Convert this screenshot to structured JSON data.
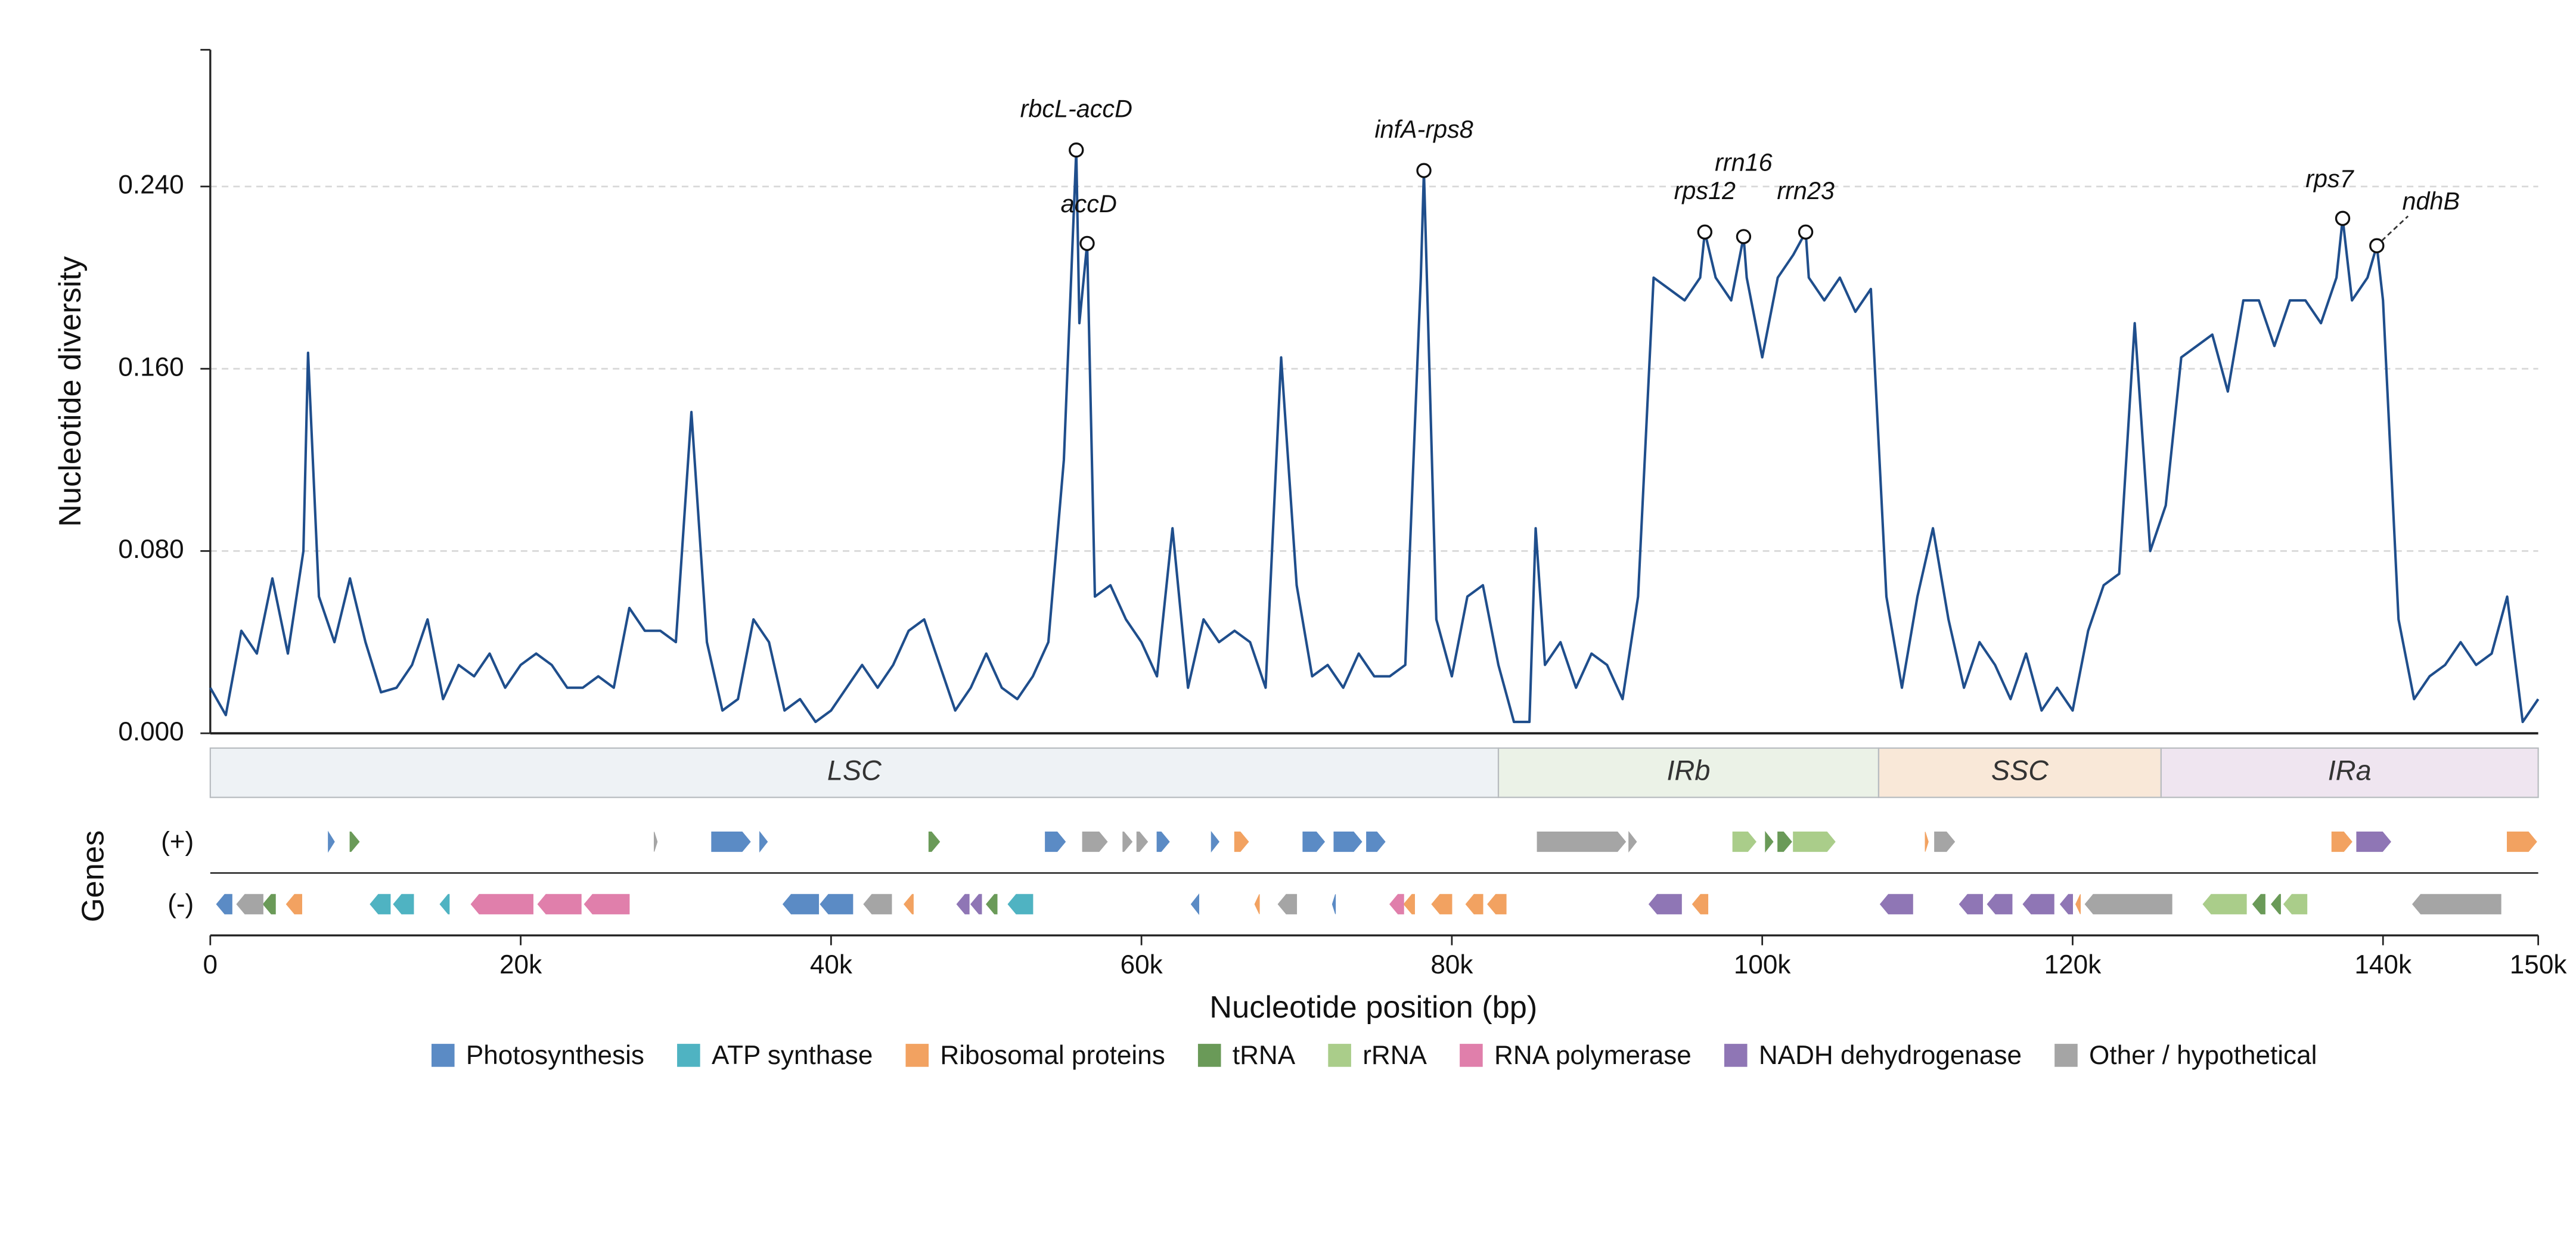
{
  "chart_data": {
    "type": "line",
    "ylabel": "Nucleotide diversity",
    "xlabel": "Nucleotide position (bp)",
    "genes_label": "Genes",
    "plus_label": "(+)",
    "minus_label": "(-)",
    "color": "#1f4e8c",
    "grid": true,
    "ylim": [
      0,
      0.3
    ],
    "yticks": [
      {
        "value": 0,
        "label": "0.000"
      },
      {
        "value": 0.08,
        "label": "0.080"
      },
      {
        "value": 0.16,
        "label": "0.160"
      },
      {
        "value": 0.24,
        "label": "0.240"
      }
    ],
    "xlim": [
      0,
      150000
    ],
    "xticks": [
      {
        "value": 0,
        "label": "0"
      },
      {
        "value": 20000,
        "label": "20k"
      },
      {
        "value": 40000,
        "label": "40k"
      },
      {
        "value": 60000,
        "label": "60k"
      },
      {
        "value": 80000,
        "label": "80k"
      },
      {
        "value": 100000,
        "label": "100k"
      },
      {
        "value": 120000,
        "label": "120k"
      },
      {
        "value": 140000,
        "label": "140k"
      },
      {
        "value": 150000,
        "label": "150k"
      }
    ],
    "x": [
      0,
      1000,
      2000,
      3000,
      4000,
      5000,
      6000,
      6300,
      7000,
      8000,
      9000,
      10000,
      11000,
      12000,
      13000,
      14000,
      15000,
      16000,
      17000,
      18000,
      19000,
      20000,
      21000,
      22000,
      23000,
      24000,
      25000,
      26000,
      27000,
      28000,
      29000,
      30000,
      31000,
      32000,
      33000,
      34000,
      35000,
      36000,
      37000,
      38000,
      39000,
      40000,
      41000,
      42000,
      43000,
      44000,
      45000,
      46000,
      47000,
      48000,
      49000,
      50000,
      51000,
      52000,
      53000,
      54000,
      55000,
      55800,
      56000,
      56500,
      57000,
      58000,
      59000,
      60000,
      61000,
      62000,
      63000,
      64000,
      65000,
      66000,
      67000,
      68000,
      69000,
      70000,
      71000,
      72000,
      73000,
      74000,
      75000,
      76000,
      77000,
      78000,
      78200,
      79000,
      80000,
      81000,
      82000,
      83000,
      84000,
      85000,
      85400,
      86000,
      87000,
      88000,
      89000,
      90000,
      91000,
      92000,
      93000,
      94000,
      95000,
      96000,
      96300,
      97000,
      98000,
      98800,
      99000,
      100000,
      101000,
      102000,
      102800,
      103000,
      104000,
      105000,
      106000,
      107000,
      108000,
      109000,
      110000,
      111000,
      112000,
      113000,
      114000,
      115000,
      116000,
      117000,
      118000,
      119000,
      120000,
      121000,
      122000,
      123000,
      124000,
      125000,
      126000,
      127000,
      128000,
      129000,
      130000,
      131000,
      132000,
      133000,
      134000,
      135000,
      136000,
      137000,
      137400,
      138000,
      139000,
      139600,
      140000,
      141000,
      142000,
      143000,
      144000,
      145000,
      146000,
      147000,
      148000,
      149000,
      150000
    ],
    "values": [
      0.02,
      0.008,
      0.045,
      0.035,
      0.068,
      0.035,
      0.08,
      0.167,
      0.06,
      0.04,
      0.068,
      0.04,
      0.018,
      0.02,
      0.03,
      0.05,
      0.015,
      0.03,
      0.025,
      0.035,
      0.02,
      0.03,
      0.035,
      0.03,
      0.02,
      0.02,
      0.025,
      0.02,
      0.055,
      0.045,
      0.045,
      0.04,
      0.141,
      0.04,
      0.01,
      0.015,
      0.05,
      0.04,
      0.01,
      0.015,
      0.005,
      0.01,
      0.02,
      0.03,
      0.02,
      0.03,
      0.045,
      0.05,
      0.03,
      0.01,
      0.02,
      0.035,
      0.02,
      0.015,
      0.025,
      0.04,
      0.12,
      0.256,
      0.18,
      0.215,
      0.06,
      0.065,
      0.05,
      0.04,
      0.025,
      0.09,
      0.02,
      0.05,
      0.04,
      0.045,
      0.04,
      0.02,
      0.165,
      0.065,
      0.025,
      0.03,
      0.02,
      0.035,
      0.025,
      0.025,
      0.03,
      0.2,
      0.247,
      0.05,
      0.025,
      0.06,
      0.065,
      0.03,
      0.005,
      0.005,
      0.09,
      0.03,
      0.04,
      0.02,
      0.035,
      0.03,
      0.015,
      0.06,
      0.2,
      0.195,
      0.19,
      0.2,
      0.22,
      0.2,
      0.19,
      0.218,
      0.2,
      0.165,
      0.2,
      0.21,
      0.22,
      0.2,
      0.19,
      0.2,
      0.185,
      0.195,
      0.06,
      0.02,
      0.06,
      0.09,
      0.05,
      0.02,
      0.04,
      0.03,
      0.015,
      0.035,
      0.01,
      0.02,
      0.01,
      0.045,
      0.065,
      0.07,
      0.18,
      0.08,
      0.1,
      0.165,
      0.17,
      0.175,
      0.15,
      0.19,
      0.19,
      0.17,
      0.19,
      0.19,
      0.18,
      0.2,
      0.226,
      0.19,
      0.2,
      0.214,
      0.19,
      0.05,
      0.015,
      0.025,
      0.03,
      0.04,
      0.03,
      0.035,
      0.06,
      0.005,
      0.015
    ],
    "annotations": [
      {
        "text": "rbcL-accD",
        "x": 55800,
        "y": 0.256
      },
      {
        "text": "accD",
        "x": 56500,
        "y": 0.215
      },
      {
        "text": "infA-rps8",
        "x": 78200,
        "y": 0.247
      },
      {
        "text": "rps12",
        "x": 96300,
        "y": 0.22
      },
      {
        "text": "rrn16",
        "x": 98800,
        "y": 0.218
      },
      {
        "text": "rrn23",
        "x": 102800,
        "y": 0.22
      },
      {
        "text": "rps7",
        "x": 137400,
        "y": 0.226
      },
      {
        "text": "ndhB",
        "x": 139600,
        "y": 0.214
      }
    ],
    "regions": [
      {
        "name": "LSC",
        "start": 0,
        "end": 83000,
        "color": "#eef2f5"
      },
      {
        "name": "IRb",
        "start": 83000,
        "end": 107500,
        "color": "#ebf2e7"
      },
      {
        "name": "SSC",
        "start": 107500,
        "end": 125700,
        "color": "#f9e8d8"
      },
      {
        "name": "IRa",
        "start": 125700,
        "end": 150000,
        "color": "#efe5f0"
      }
    ],
    "gene_groups": [
      {
        "name": "Photosynthesis",
        "color": "#5b8bc5",
        "plus": [
          [
            7600,
            8000
          ],
          [
            32300,
            34800
          ],
          [
            35400,
            35900
          ],
          [
            53800,
            55100
          ],
          [
            61000,
            61800
          ],
          [
            64500,
            65000
          ],
          [
            70400,
            71800
          ],
          [
            72400,
            74200
          ],
          [
            74500,
            75700
          ]
        ],
        "minus": [
          [
            400,
            1400
          ],
          [
            36900,
            39200
          ],
          [
            39300,
            41400
          ],
          [
            63200,
            63700
          ],
          [
            72300,
            72500
          ]
        ]
      },
      {
        "name": "ATP synthase",
        "color": "#4fb3c2",
        "plus": [],
        "minus": [
          [
            10300,
            11600
          ],
          [
            11800,
            13100
          ],
          [
            14800,
            15400
          ],
          [
            51400,
            53000
          ]
        ]
      },
      {
        "name": "Ribosomal proteins",
        "color": "#f2a261",
        "plus": [
          [
            66000,
            66900
          ],
          [
            110500,
            110700
          ],
          [
            136700,
            138000
          ],
          [
            148000,
            149900
          ]
        ],
        "minus": [
          [
            4900,
            5900
          ],
          [
            44700,
            45300
          ],
          [
            67300,
            67600
          ],
          [
            76900,
            77600
          ],
          [
            78700,
            80000
          ],
          [
            80900,
            82000
          ],
          [
            82300,
            83500
          ],
          [
            95500,
            96500
          ],
          [
            120200,
            120500
          ]
        ]
      },
      {
        "name": "tRNA",
        "color": "#6a9a58",
        "plus": [
          [
            9000,
            9600
          ],
          [
            46300,
            47000
          ],
          [
            100200,
            100700
          ],
          [
            101000,
            101900
          ]
        ],
        "minus": [
          [
            3400,
            4200
          ],
          [
            50000,
            50700
          ],
          [
            131600,
            132400
          ],
          [
            132800,
            133400
          ]
        ]
      },
      {
        "name": "rRNA",
        "color": "#aacd8a",
        "plus": [
          [
            98100,
            99600
          ],
          [
            102000,
            104700
          ]
        ],
        "minus": [
          [
            128400,
            131200
          ],
          [
            133600,
            135100
          ]
        ]
      },
      {
        "name": "RNA polymerase",
        "color": "#e07fab",
        "plus": [],
        "minus": [
          [
            16800,
            20800
          ],
          [
            21100,
            23900
          ],
          [
            24100,
            27000
          ],
          [
            76000,
            76900
          ]
        ]
      },
      {
        "name": "NADH dehydrogenase",
        "color": "#8f76b5",
        "plus": [
          [
            138300,
            140500
          ]
        ],
        "minus": [
          [
            48100,
            48900
          ],
          [
            49000,
            49700
          ],
          [
            92700,
            94800
          ],
          [
            107600,
            109700
          ],
          [
            112700,
            114200
          ],
          [
            114500,
            116100
          ],
          [
            116800,
            118800
          ],
          [
            119200,
            120000
          ]
        ]
      },
      {
        "name": "Other / hypothetical",
        "color": "#a5a5a5",
        "plus": [
          [
            28600,
            28800
          ],
          [
            56200,
            57800
          ],
          [
            58800,
            59400
          ],
          [
            59700,
            60400
          ],
          [
            85500,
            91200
          ],
          [
            91400,
            91900
          ],
          [
            111100,
            112400
          ]
        ],
        "minus": [
          [
            1700,
            3400
          ],
          [
            42100,
            43900
          ],
          [
            68800,
            70000
          ],
          [
            120800,
            126400
          ],
          [
            141900,
            147600
          ]
        ]
      }
    ]
  }
}
